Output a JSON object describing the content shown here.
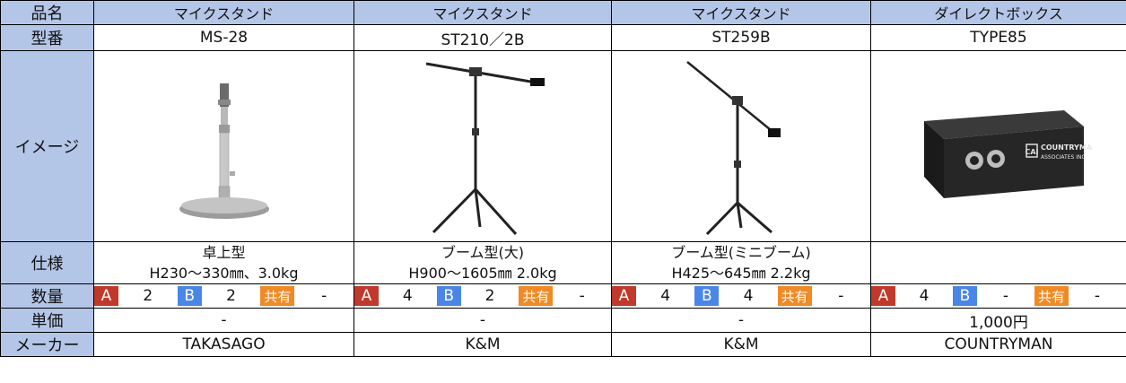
{
  "row_labels": {
    "name": "品名",
    "model": "型番",
    "image": "イメージ",
    "spec": "仕様",
    "qty": "数量",
    "price": "単価",
    "maker": "メーカー"
  },
  "qty_tags": {
    "a": "A",
    "b": "B",
    "shared": "共有"
  },
  "products": [
    {
      "name": "マイクスタンド",
      "model": "MS-28",
      "image_icon": "desk-mic-stand-icon",
      "spec_line1": "卓上型",
      "spec_line2": "H230～330㎜、3.0kg",
      "qty_a": "2",
      "qty_b": "2",
      "qty_shared": "-",
      "price": "-",
      "maker": "TAKASAGO"
    },
    {
      "name": "マイクスタンド",
      "model": "ST210／2B",
      "image_icon": "boom-mic-stand-icon",
      "spec_line1": "ブーム型(大)",
      "spec_line2": "H900～1605㎜  2.0kg",
      "qty_a": "4",
      "qty_b": "2",
      "qty_shared": "-",
      "price": "-",
      "maker": "K&M"
    },
    {
      "name": "マイクスタンド",
      "model": "ST259B",
      "image_icon": "mini-boom-mic-stand-icon",
      "spec_line1": "ブーム型(ミニブーム)",
      "spec_line2": "H425～645㎜  2.2kg",
      "qty_a": "4",
      "qty_b": "4",
      "qty_shared": "-",
      "price": "-",
      "maker": "K&M"
    },
    {
      "name": "ダイレクトボックス",
      "model": "TYPE85",
      "image_icon": "direct-box-icon",
      "spec_line1": "",
      "spec_line2": "",
      "qty_a": "4",
      "qty_b": "-",
      "qty_shared": "-",
      "price": "1,000円",
      "maker": "COUNTRYMAN"
    }
  ],
  "direct_box_print": {
    "brand": "COUNTRYMAN",
    "sub": "ASSOCIATES INC",
    "logo": "CAI"
  }
}
